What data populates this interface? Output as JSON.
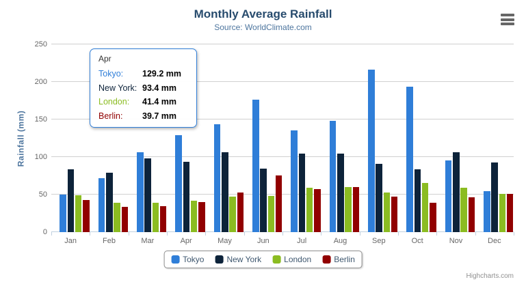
{
  "chart_data": {
    "type": "bar",
    "title": "Monthly Average Rainfall",
    "subtitle": "Source: WorldClimate.com",
    "xlabel": "",
    "ylabel": "Rainfall (mm)",
    "ylim": [
      0,
      250
    ],
    "ytick_interval": 50,
    "grid": true,
    "legend_position": "bottom",
    "categories": [
      "Jan",
      "Feb",
      "Mar",
      "Apr",
      "May",
      "Jun",
      "Jul",
      "Aug",
      "Sep",
      "Oct",
      "Nov",
      "Dec"
    ],
    "series": [
      {
        "name": "Tokyo",
        "color": "#2f7ed8",
        "values": [
          49.9,
          71.5,
          106.4,
          129.2,
          144.0,
          176.0,
          135.6,
          148.5,
          216.4,
          194.1,
          95.6,
          54.4
        ]
      },
      {
        "name": "New York",
        "color": "#0d233a",
        "values": [
          83.6,
          78.8,
          98.5,
          93.4,
          106.0,
          84.5,
          105.0,
          104.3,
          91.2,
          83.5,
          106.6,
          92.3
        ]
      },
      {
        "name": "London",
        "color": "#8bbc21",
        "values": [
          48.9,
          38.8,
          39.3,
          41.4,
          47.0,
          48.3,
          59.0,
          59.6,
          52.4,
          65.2,
          59.3,
          51.2
        ]
      },
      {
        "name": "Berlin",
        "color": "#910000",
        "values": [
          42.4,
          33.2,
          34.5,
          39.7,
          52.6,
          75.5,
          57.4,
          60.4,
          47.6,
          39.1,
          46.8,
          51.1
        ]
      }
    ]
  },
  "tooltip": {
    "category": "Apr",
    "rows": [
      {
        "series": "Tokyo",
        "label": "Tokyo:",
        "value": "129.2 mm"
      },
      {
        "series": "New York",
        "label": "New York:",
        "value": "93.4 mm"
      },
      {
        "series": "London",
        "label": "London:",
        "value": "41.4 mm"
      },
      {
        "series": "Berlin",
        "label": "Berlin:",
        "value": "39.7 mm"
      }
    ]
  },
  "icons": {
    "export_menu": "hamburger-menu-icon"
  },
  "credits": {
    "text": "Highcharts.com"
  },
  "colors": {
    "title": "#274b6d",
    "subtitle": "#4d759e",
    "axis_labels": "#666666",
    "gridline": "#d0d0d0",
    "axis_line": "#c0d0e0",
    "legend_text": "#3e576f",
    "legend_border": "#909090",
    "credits": "#909090"
  }
}
